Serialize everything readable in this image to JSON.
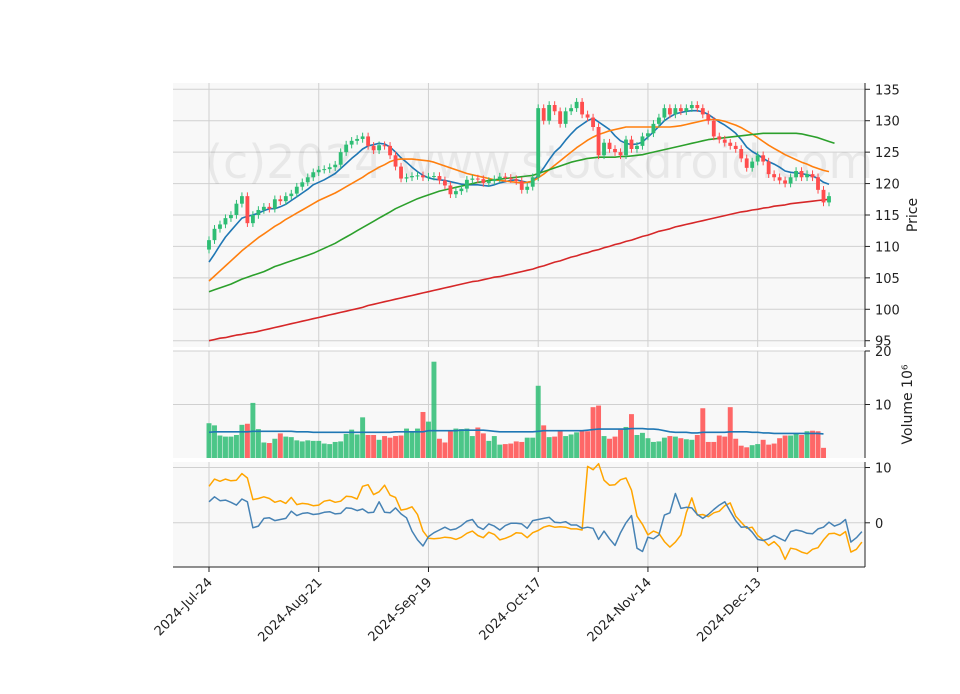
{
  "chart_data": {
    "type": "candlestick",
    "watermark": "(c)2024 www.stockdroid.com",
    "x_tick_labels": [
      "2024-Jul-24",
      "2024-Aug-21",
      "2024-Sep-19",
      "2024-Oct-17",
      "2024-Nov-14",
      "2024-Dec-13"
    ],
    "x_tick_index": [
      0,
      20,
      40,
      60,
      80,
      100
    ],
    "colors": {
      "up": "#2ebd74",
      "down": "#ff4d4d",
      "ma1": "#1f77b4",
      "ma2": "#ff7f0e",
      "ma3": "#2ca02c",
      "ma4": "#d62728",
      "macd": "#4682b4",
      "signal": "#ffa500",
      "panel_bg": "#f8f8f8",
      "grid": "#d0d0d0"
    },
    "price_panel": {
      "ylabel": "Price",
      "yticks": [
        95,
        100,
        105,
        110,
        115,
        120,
        125,
        130,
        135
      ],
      "ylim": [
        94,
        136
      ],
      "close": [
        111.0,
        112.8,
        113.5,
        114.5,
        115.0,
        116.8,
        118.0,
        113.7,
        115.0,
        115.8,
        116.3,
        116.0,
        117.5,
        117.2,
        118.0,
        118.4,
        119.5,
        120.2,
        121.0,
        121.8,
        122.2,
        122.3,
        122.6,
        123.0,
        125.0,
        126.2,
        126.8,
        127.1,
        127.5,
        126.0,
        125.3,
        126.1,
        126.0,
        124.5,
        122.7,
        120.8,
        121.0,
        121.2,
        121.3,
        121.0,
        121.1,
        121.2,
        120.5,
        119.7,
        118.3,
        118.8,
        119.2,
        120.6,
        120.8,
        120.7,
        120.1,
        120.4,
        120.7,
        121.1,
        120.9,
        120.7,
        120.4,
        119.0,
        119.5,
        121.0,
        132.0,
        130.0,
        132.5,
        131.5,
        129.5,
        131.5,
        132.0,
        133.0,
        131.0,
        130.5,
        129.0,
        124.5,
        126.5,
        125.5,
        125.0,
        124.5,
        127.0,
        125.5,
        126.0,
        127.5,
        128.0,
        129.5,
        130.5,
        132.0,
        131.0,
        132.0,
        131.5,
        132.0,
        132.5,
        132.0,
        131.0,
        130.0,
        127.5,
        127.0,
        126.5,
        126.0,
        125.5,
        124.0,
        122.5,
        123.5,
        124.5,
        123.5,
        121.5,
        121.0,
        120.5,
        120.0,
        121.0,
        122.0,
        121.0,
        121.5,
        121.0,
        119.0,
        117.0,
        118.0
      ],
      "ma_series": [
        {
          "color_key": "ma1",
          "values": [
            107.5,
            108.8,
            110.2,
            111.5,
            112.5,
            113.5,
            114.5,
            114.8,
            115.0,
            115.3,
            115.7,
            116.0,
            116.0,
            116.3,
            116.7,
            117.3,
            117.9,
            118.5,
            119.1,
            119.8,
            120.2,
            120.6,
            121.1,
            121.6,
            122.4,
            123.2,
            124.0,
            124.7,
            125.5,
            126.0,
            126.2,
            126.4,
            126.3,
            125.8,
            125.0,
            124.1,
            123.4,
            122.6,
            121.9,
            121.3,
            120.9,
            120.7,
            120.6,
            120.5,
            120.3,
            120.1,
            119.9,
            119.8,
            119.8,
            119.8,
            119.7,
            119.6,
            119.8,
            120.1,
            120.3,
            120.5,
            120.6,
            120.4,
            120.2,
            120.3,
            121.3,
            122.5,
            123.8,
            125.0,
            125.8,
            126.9,
            127.9,
            128.8,
            129.4,
            130.0,
            130.4,
            129.8,
            129.2,
            128.6,
            127.6,
            126.8,
            126.4,
            126.2,
            126.3,
            126.6,
            127.4,
            128.2,
            129.1,
            130.0,
            130.6,
            131.1,
            131.3,
            131.5,
            131.6,
            131.6,
            131.4,
            131.0,
            130.4,
            129.8,
            129.3,
            128.7,
            128.0,
            127.0,
            125.8,
            125.1,
            124.6,
            124.0,
            123.5,
            123.1,
            122.6,
            122.0,
            121.8,
            121.7,
            121.6,
            121.4,
            121.2,
            120.8,
            120.2,
            119.9
          ]
        },
        {
          "color_key": "ma2",
          "values": [
            104.5,
            105.3,
            106.1,
            106.9,
            107.7,
            108.5,
            109.3,
            110.0,
            110.7,
            111.4,
            112.0,
            112.6,
            113.2,
            113.7,
            114.3,
            114.8,
            115.3,
            115.8,
            116.3,
            116.8,
            117.3,
            117.7,
            118.1,
            118.5,
            119.0,
            119.5,
            120.0,
            120.5,
            121.0,
            121.6,
            122.1,
            122.6,
            123.0,
            123.5,
            123.8,
            123.9,
            123.9,
            123.9,
            123.8,
            123.7,
            123.6,
            123.4,
            123.1,
            122.8,
            122.5,
            122.2,
            121.9,
            121.6,
            121.4,
            121.2,
            121.0,
            120.8,
            120.6,
            120.5,
            120.4,
            120.3,
            120.2,
            120.1,
            120.2,
            120.4,
            120.9,
            121.5,
            122.2,
            122.9,
            123.6,
            124.3,
            125.0,
            125.7,
            126.3,
            126.9,
            127.4,
            127.8,
            128.1,
            128.4,
            128.6,
            128.8,
            129.0,
            129.0,
            129.0,
            129.0,
            129.0,
            129.0,
            129.0,
            129.0,
            129.0,
            129.1,
            129.2,
            129.4,
            129.6,
            129.8,
            130.0,
            130.2,
            130.2,
            130.1,
            129.9,
            129.6,
            129.3,
            128.9,
            128.4,
            127.9,
            127.3,
            126.7,
            126.1,
            125.6,
            125.1,
            124.6,
            124.2,
            123.8,
            123.4,
            123.1,
            122.7,
            122.4,
            122.1,
            121.9
          ]
        },
        {
          "color_key": "ma3",
          "values": [
            102.8,
            103.1,
            103.4,
            103.7,
            104.0,
            104.4,
            104.8,
            105.1,
            105.4,
            105.7,
            106.0,
            106.4,
            106.8,
            107.1,
            107.4,
            107.7,
            108.0,
            108.3,
            108.6,
            108.9,
            109.3,
            109.7,
            110.1,
            110.5,
            111.0,
            111.5,
            112.0,
            112.5,
            113.0,
            113.5,
            114.0,
            114.5,
            115.0,
            115.5,
            116.0,
            116.4,
            116.8,
            117.2,
            117.6,
            117.9,
            118.2,
            118.5,
            118.8,
            119.0,
            119.2,
            119.4,
            119.6,
            119.8,
            120.0,
            120.2,
            120.3,
            120.5,
            120.6,
            120.7,
            120.8,
            120.9,
            121.0,
            121.1,
            121.2,
            121.3,
            121.6,
            121.9,
            122.2,
            122.5,
            122.8,
            123.1,
            123.4,
            123.6,
            123.8,
            124.0,
            124.1,
            124.2,
            124.2,
            124.2,
            124.2,
            124.3,
            124.3,
            124.4,
            124.5,
            124.6,
            124.8,
            125.0,
            125.2,
            125.4,
            125.6,
            125.8,
            126.0,
            126.2,
            126.4,
            126.6,
            126.8,
            127.0,
            127.1,
            127.2,
            127.3,
            127.4,
            127.5,
            127.6,
            127.7,
            127.8,
            127.9,
            128.0,
            128.0,
            128.0,
            128.0,
            128.0,
            128.0,
            128.0,
            127.9,
            127.7,
            127.5,
            127.3,
            127.0,
            126.7,
            126.4
          ]
        },
        {
          "color_key": "ma4",
          "values": [
            95.0,
            95.2,
            95.4,
            95.5,
            95.7,
            95.9,
            96.0,
            96.2,
            96.3,
            96.5,
            96.7,
            96.9,
            97.1,
            97.3,
            97.5,
            97.7,
            97.9,
            98.1,
            98.3,
            98.5,
            98.7,
            98.9,
            99.1,
            99.3,
            99.5,
            99.7,
            99.9,
            100.1,
            100.3,
            100.6,
            100.8,
            101.0,
            101.2,
            101.4,
            101.6,
            101.8,
            102.0,
            102.2,
            102.4,
            102.6,
            102.8,
            103.0,
            103.2,
            103.4,
            103.6,
            103.8,
            104.0,
            104.2,
            104.4,
            104.5,
            104.7,
            104.9,
            105.1,
            105.2,
            105.4,
            105.6,
            105.8,
            106.0,
            106.2,
            106.4,
            106.7,
            106.9,
            107.2,
            107.5,
            107.7,
            108.0,
            108.3,
            108.5,
            108.8,
            109.0,
            109.3,
            109.5,
            109.8,
            110.0,
            110.3,
            110.5,
            110.8,
            111.0,
            111.3,
            111.6,
            111.8,
            112.1,
            112.4,
            112.6,
            112.8,
            113.1,
            113.3,
            113.5,
            113.7,
            113.9,
            114.1,
            114.3,
            114.5,
            114.7,
            114.9,
            115.1,
            115.3,
            115.5,
            115.6,
            115.8,
            115.9,
            116.1,
            116.2,
            116.4,
            116.5,
            116.6,
            116.8,
            116.9,
            117.0,
            117.1,
            117.2,
            117.3,
            117.4,
            117.5
          ]
        }
      ]
    },
    "volume_panel": {
      "ylabel": "Volume  10⁶",
      "yticks": [
        10,
        20
      ],
      "ylim": [
        0,
        20
      ],
      "values": [
        6.5,
        6.1,
        4.2,
        4.0,
        4.0,
        4.3,
        6.2,
        6.4,
        10.3,
        5.4,
        2.9,
        2.8,
        3.6,
        4.6,
        4.0,
        3.9,
        3.3,
        3.1,
        3.3,
        3.2,
        3.2,
        2.7,
        2.6,
        3.0,
        3.1,
        4.5,
        5.3,
        4.4,
        7.6,
        4.3,
        4.3,
        3.4,
        4.1,
        3.8,
        4.1,
        4.2,
        5.5,
        4.8,
        5.5,
        8.6,
        6.8,
        18.0,
        3.6,
        2.9,
        5.2,
        5.5,
        5.4,
        5.5,
        4.1,
        5.7,
        4.6,
        3.2,
        4.1,
        2.5,
        2.6,
        2.7,
        3.1,
        3.0,
        3.8,
        3.8,
        13.5,
        6.1,
        3.9,
        4.0,
        5.0,
        4.1,
        4.4,
        4.8,
        5.2,
        5.0,
        9.5,
        9.8,
        4.1,
        3.6,
        4.0,
        5.3,
        5.8,
        8.2,
        4.3,
        4.7,
        3.7,
        3.0,
        3.1,
        3.8,
        4.1,
        4.0,
        3.7,
        3.5,
        3.4,
        4.3,
        9.3,
        3.0,
        3.0,
        4.2,
        4.0,
        9.5,
        3.6,
        2.3,
        2.0,
        2.4,
        2.6,
        3.4,
        2.5,
        2.7,
        3.7,
        4.2,
        4.2,
        4.6,
        4.3,
        5.0,
        5.1,
        5.0,
        1.9
      ],
      "avg": [
        4.8,
        4.9,
        4.9,
        4.9,
        4.9,
        4.9,
        4.9,
        4.9,
        5.0,
        5.0,
        5.0,
        5.0,
        5.0,
        5.0,
        5.0,
        5.0,
        4.9,
        4.9,
        4.9,
        4.8,
        4.8,
        4.8,
        4.8,
        4.8,
        4.8,
        4.8,
        4.8,
        4.8,
        4.8,
        4.8,
        4.8,
        4.8,
        4.8,
        4.8,
        4.9,
        4.9,
        4.9,
        4.9,
        4.9,
        4.9,
        5.1,
        5.1,
        5.1,
        5.1,
        5.1,
        5.1,
        5.2,
        5.2,
        5.2,
        5.2,
        5.2,
        5.1,
        5.0,
        4.9,
        4.9,
        4.9,
        4.9,
        4.9,
        4.9,
        4.9,
        5.0,
        5.1,
        5.1,
        5.1,
        5.1,
        5.1,
        5.1,
        5.1,
        5.1,
        5.2,
        5.3,
        5.4,
        5.4,
        5.4,
        5.4,
        5.4,
        5.4,
        5.5,
        5.5,
        5.5,
        5.4,
        5.4,
        5.3,
        5.1,
        4.9,
        4.8,
        4.8,
        4.8,
        4.7,
        4.7,
        4.8,
        4.8,
        4.8,
        4.8,
        4.8,
        4.9,
        4.9,
        4.9,
        4.9,
        4.8,
        4.8,
        4.7,
        4.7,
        4.6,
        4.6,
        4.6,
        4.6,
        4.6,
        4.6,
        4.6,
        4.6,
        4.6,
        4.5
      ]
    },
    "macd_panel": {
      "yticks": [
        0,
        10
      ],
      "ylim": [
        -8,
        11
      ],
      "macd": [
        3.8,
        4.7,
        4.0,
        4.1,
        3.7,
        3.2,
        4.3,
        3.8,
        -0.9,
        -0.6,
        0.8,
        0.9,
        0.4,
        0.6,
        0.8,
        2.1,
        1.3,
        1.7,
        1.8,
        1.5,
        1.6,
        1.9,
        2.0,
        1.6,
        1.7,
        2.7,
        2.6,
        2.2,
        2.5,
        1.8,
        1.9,
        3.8,
        1.9,
        1.8,
        2.7,
        1.6,
        0.9,
        -1.5,
        -3.1,
        -4.2,
        -2.5,
        -1.8,
        -1.3,
        -0.8,
        -1.3,
        -1.1,
        -0.5,
        0.3,
        0.6,
        -0.7,
        -1.2,
        -0.2,
        -0.6,
        -1.3,
        -0.5,
        -0.1,
        -0.1,
        -0.2,
        -1.0,
        0.4,
        0.6,
        0.8,
        1.0,
        0.1,
        0.0,
        0.2,
        -0.4,
        -0.4,
        -1.0,
        -0.8,
        -1.0,
        -3.0,
        -1.5,
        -2.9,
        -4.1,
        -1.8,
        0.0,
        1.3,
        -4.6,
        -5.2,
        -2.6,
        -2.9,
        -2.2,
        1.4,
        1.8,
        5.3,
        2.6,
        2.8,
        2.7,
        1.5,
        0.8,
        1.5,
        2.4,
        3.2,
        3.8,
        2.1,
        0.4,
        -0.8,
        -0.7,
        -1.7,
        -3.0,
        -3.2,
        -2.9,
        -2.3,
        -2.8,
        -3.3,
        -1.6,
        -1.3,
        -1.5,
        -1.9,
        -2.0,
        -1.1,
        -0.8,
        0.1,
        -0.6,
        -0.2,
        0.6,
        -3.5,
        -2.7,
        -1.6
      ],
      "signal": [
        6.6,
        7.9,
        7.5,
        7.9,
        7.6,
        7.7,
        8.9,
        8.1,
        4.2,
        4.4,
        4.7,
        4.4,
        3.7,
        4.0,
        3.5,
        4.6,
        3.3,
        3.5,
        3.4,
        3.1,
        3.2,
        3.9,
        4.1,
        3.7,
        3.9,
        4.8,
        4.7,
        4.3,
        6.6,
        6.9,
        5.1,
        5.6,
        6.8,
        5.0,
        4.6,
        2.3,
        2.5,
        2.9,
        1.5,
        -1.5,
        -2.8,
        -2.9,
        -2.8,
        -2.6,
        -2.7,
        -3.0,
        -2.6,
        -1.9,
        -1.5,
        -2.3,
        -2.7,
        -1.7,
        -2.1,
        -3.1,
        -2.8,
        -2.4,
        -1.8,
        -1.9,
        -2.7,
        -1.8,
        -1.4,
        -0.8,
        -0.5,
        -0.8,
        -0.7,
        -0.8,
        -1.1,
        -1.1,
        -1.3,
        10.2,
        9.6,
        10.7,
        7.7,
        6.8,
        6.9,
        7.8,
        8.1,
        5.9,
        1.2,
        -0.3,
        -2.2,
        -1.5,
        -1.9,
        -3.4,
        -4.4,
        -3.5,
        -2.2,
        1.8,
        4.5,
        1.4,
        1.5,
        1.1,
        1.8,
        2.1,
        3.1,
        3.6,
        1.2,
        0.1,
        -1.0,
        -0.8,
        -2.3,
        -3.1,
        -4.1,
        -3.4,
        -4.4,
        -6.6,
        -4.6,
        -4.8,
        -5.3,
        -5.6,
        -4.8,
        -4.5,
        -3.1,
        -2.0,
        -1.9,
        -2.3,
        -1.6,
        -5.3,
        -4.8,
        -3.5
      ]
    }
  }
}
